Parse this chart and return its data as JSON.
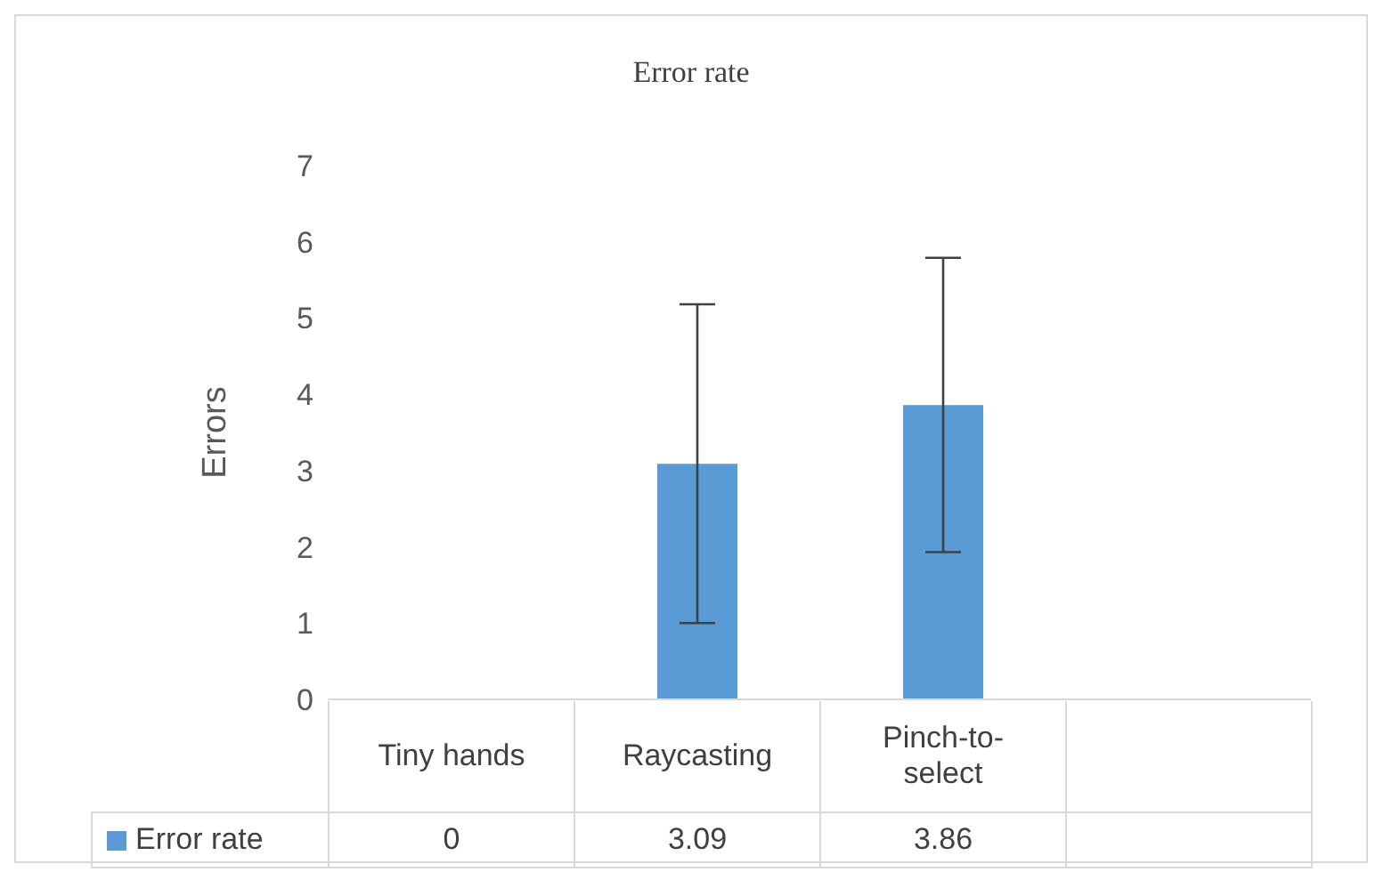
{
  "chart_data": {
    "type": "bar",
    "title": "Error rate",
    "ylabel": "Errors",
    "categories": [
      "Tiny hands",
      "Raycasting",
      "Pinch-to-select",
      null
    ],
    "series": [
      {
        "name": "Error rate",
        "color": "#5b9bd5",
        "values": [
          0,
          3.09,
          3.86,
          null
        ],
        "errors": [
          null,
          2.09,
          1.93,
          null
        ]
      }
    ],
    "ylim": [
      0,
      7
    ],
    "yticks": [
      0,
      1,
      2,
      3,
      4,
      5,
      6,
      7
    ],
    "data_labels": true
  }
}
